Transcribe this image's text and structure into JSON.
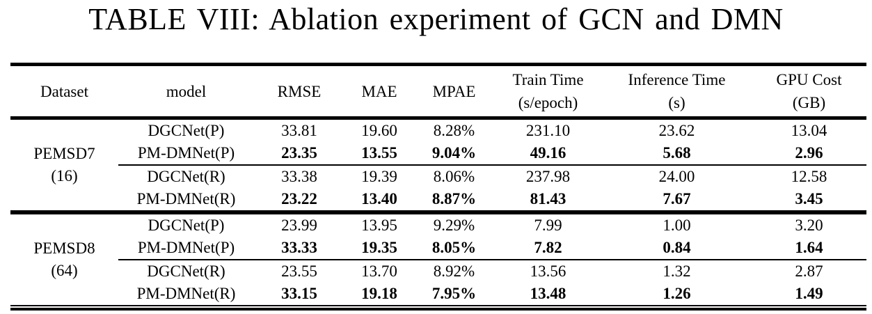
{
  "title": "TABLE VIII: Ablation experiment of GCN and DMN",
  "table": {
    "columns": [
      {
        "line1": "Dataset"
      },
      {
        "line1": "model"
      },
      {
        "line1": "RMSE"
      },
      {
        "line1": "MAE"
      },
      {
        "line1": "MPAE"
      },
      {
        "line1": "Train Time",
        "line2": "(s/epoch)"
      },
      {
        "line1": "Inference Time",
        "line2": "(s)"
      },
      {
        "line1": "GPU Cost",
        "line2": "(GB)"
      }
    ],
    "sections": [
      {
        "dataset": {
          "name": "PEMSD7",
          "size": "(16)"
        },
        "rows": [
          {
            "model": "DGCNet(P)",
            "rmse": "33.81",
            "mae": "19.60",
            "mpae": "8.28%",
            "train_time": "231.10",
            "inference_time": "23.62",
            "gpu_cost": "13.04",
            "bold": false
          },
          {
            "model": "PM-DMNet(P)",
            "rmse": "23.35",
            "mae": "13.55",
            "mpae": "9.04%",
            "train_time": "49.16",
            "inference_time": "5.68",
            "gpu_cost": "2.96",
            "bold": true
          },
          {
            "model": "DGCNet(R)",
            "rmse": "33.38",
            "mae": "19.39",
            "mpae": "8.06%",
            "train_time": "237.98",
            "inference_time": "24.00",
            "gpu_cost": "12.58",
            "bold": false
          },
          {
            "model": "PM-DMNet(R)",
            "rmse": "23.22",
            "mae": "13.40",
            "mpae": "8.87%",
            "train_time": "81.43",
            "inference_time": "7.67",
            "gpu_cost": "3.45",
            "bold": true
          }
        ]
      },
      {
        "dataset": {
          "name": "PEMSD8",
          "size": "(64)"
        },
        "rows": [
          {
            "model": "DGCNet(P)",
            "rmse": "23.99",
            "mae": "13.95",
            "mpae": "9.29%",
            "train_time": "7.99",
            "inference_time": "1.00",
            "gpu_cost": "3.20",
            "bold": false
          },
          {
            "model": "PM-DMNet(P)",
            "rmse": "33.33",
            "mae": "19.35",
            "mpae": "8.05%",
            "train_time": "7.82",
            "inference_time": "0.84",
            "gpu_cost": "1.64",
            "bold": true
          },
          {
            "model": "DGCNet(R)",
            "rmse": "23.55",
            "mae": "13.70",
            "mpae": "8.92%",
            "train_time": "13.56",
            "inference_time": "1.32",
            "gpu_cost": "2.87",
            "bold": false
          },
          {
            "model": "PM-DMNet(R)",
            "rmse": "33.15",
            "mae": "19.18",
            "mpae": "7.95%",
            "train_time": "13.48",
            "inference_time": "1.26",
            "gpu_cost": "1.49",
            "bold": true
          }
        ]
      }
    ]
  },
  "colors": {
    "text": "#000000",
    "background": "#ffffff",
    "rule": "#000000"
  }
}
